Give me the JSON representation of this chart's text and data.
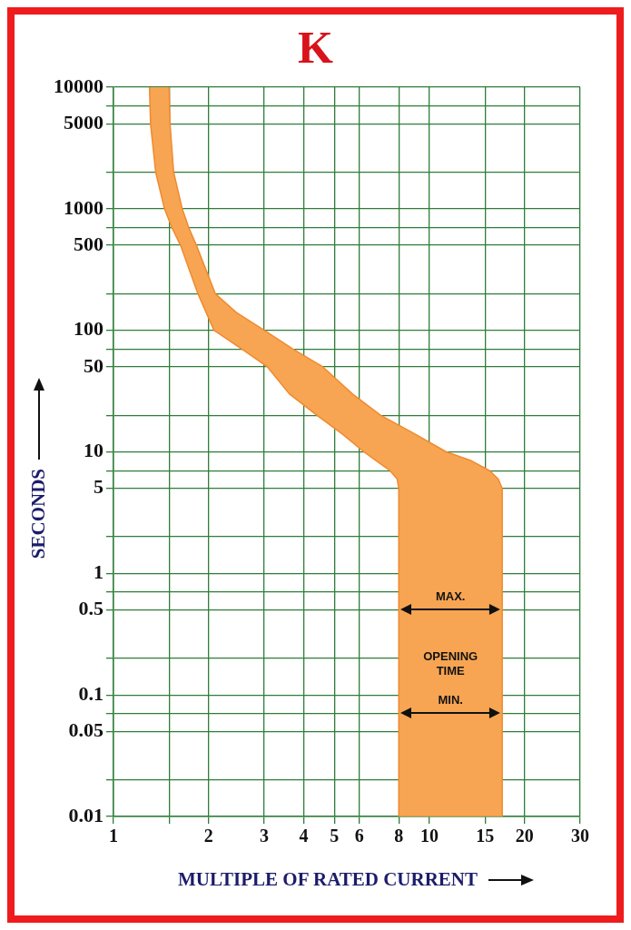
{
  "chart_data": {
    "type": "area",
    "title": "K",
    "xlabel": "MULTIPLE OF RATED CURRENT",
    "ylabel": "SECONDS",
    "log": "xy",
    "grid": true,
    "marker": "none",
    "xlim": [
      1,
      30
    ],
    "xticks": [
      1,
      {
        "value": 1.5,
        "label": null
      },
      2,
      3,
      4,
      5,
      6,
      8,
      10,
      15,
      20,
      30
    ],
    "ylim": [
      0.01,
      10000
    ],
    "yticks": [
      0.01,
      {
        "value": 0.02,
        "label": null
      },
      0.05,
      {
        "value": 0.07,
        "label": null
      },
      0.1,
      {
        "value": 0.2,
        "label": null
      },
      0.5,
      {
        "value": 0.7,
        "label": null
      },
      1,
      {
        "value": 2,
        "label": null
      },
      5,
      {
        "value": 7,
        "label": null
      },
      10,
      {
        "value": 20,
        "label": null
      },
      50,
      {
        "value": 70,
        "label": null
      },
      100,
      {
        "value": 200,
        "label": null
      },
      500,
      {
        "value": 700,
        "label": null
      },
      1000,
      {
        "value": 2000,
        "label": null
      },
      5000,
      {
        "value": 7000,
        "label": null
      },
      10000
    ],
    "series": [
      {
        "color": "#f7a552",
        "x": [
          1.3,
          1.31,
          1.36,
          1.45,
          1.53,
          1.63,
          1.85,
          2.08,
          2.55,
          3.07,
          3.6,
          4.4,
          5.3,
          6.2,
          7.5,
          7.9,
          8,
          8,
          17,
          17,
          16.5,
          15.5,
          13.5,
          11.3,
          9,
          7,
          5.7,
          4.6,
          3.7,
          3,
          2.45,
          2.1,
          1.83,
          1.73,
          1.65,
          1.55,
          1.51,
          1.5
        ],
        "values": [
          10000,
          5000,
          2000,
          1000,
          700,
          500,
          200,
          100,
          70,
          50,
          30,
          20,
          14,
          10,
          7,
          6,
          5,
          0.01,
          0.01,
          5,
          6,
          7,
          8.5,
          10,
          14,
          20,
          30,
          50,
          70,
          100,
          140,
          200,
          500,
          700,
          1000,
          2000,
          5000,
          10000
        ]
      }
    ],
    "annotations": [
      "MAX.",
      "OPENING TIME",
      "MIN."
    ]
  }
}
